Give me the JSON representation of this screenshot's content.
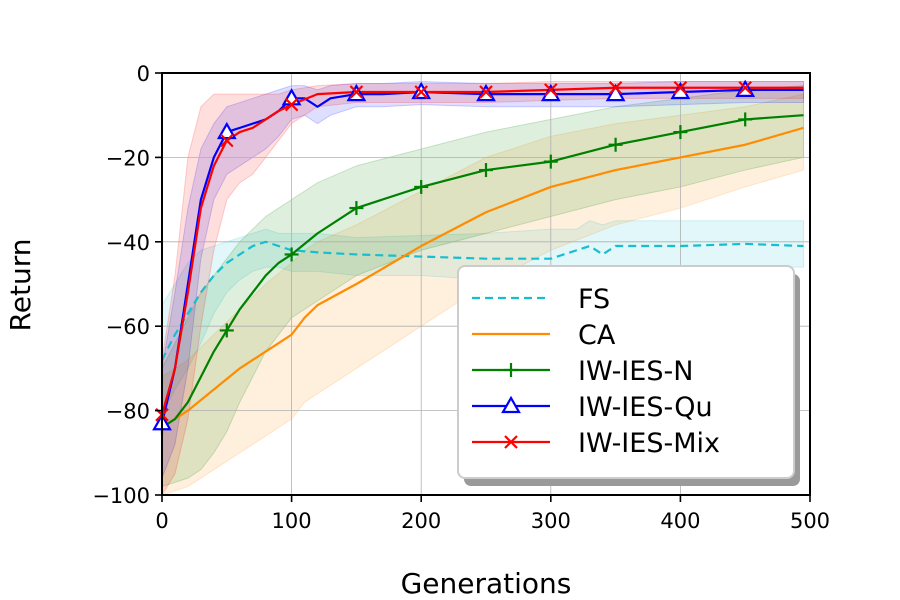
{
  "chart_data": {
    "type": "line",
    "title": "",
    "xlabel": "Generations",
    "ylabel": "Return",
    "xlim": [
      0,
      500
    ],
    "ylim": [
      -100,
      0
    ],
    "xticks": [
      0,
      100,
      200,
      300,
      400,
      500
    ],
    "yticks": [
      0,
      -20,
      -40,
      -60,
      -80,
      -100
    ],
    "xtick_labels": [
      "0",
      "100",
      "200",
      "300",
      "400",
      "500"
    ],
    "ytick_labels": [
      "0",
      "−20",
      "−40",
      "−60",
      "−80",
      "−100"
    ],
    "grid": true,
    "legend_position": "lower-right",
    "series": [
      {
        "name": "FS",
        "color": "#17becf",
        "dash": "dashed",
        "marker": "none",
        "x": [
          0,
          10,
          20,
          30,
          40,
          50,
          60,
          70,
          80,
          90,
          100,
          120,
          150,
          200,
          250,
          300,
          320,
          330,
          340,
          350,
          360,
          400,
          450,
          495
        ],
        "y": [
          -68,
          -62,
          -57,
          -52,
          -48,
          -45,
          -43,
          -41,
          -40,
          -41,
          -42,
          -42.5,
          -43,
          -43.5,
          -44,
          -44,
          -42,
          -41,
          -43,
          -41,
          -41,
          -41,
          -40.5,
          -41
        ],
        "upper": [
          -55,
          -50,
          -45,
          -42,
          -41,
          -40,
          -39,
          -38,
          -37,
          -38,
          -38,
          -38,
          -39,
          -38.5,
          -38,
          -37,
          -37,
          -35,
          -36,
          -35,
          -35,
          -35,
          -35,
          -35
        ],
        "lower": [
          -81,
          -75,
          -70,
          -64,
          -57,
          -52,
          -49,
          -47,
          -46,
          -46,
          -47,
          -47,
          -48,
          -48,
          -49,
          -49,
          -47,
          -47,
          -48,
          -46,
          -46,
          -46,
          -46,
          -46
        ]
      },
      {
        "name": "CA",
        "color": "#ff8c00",
        "dash": "solid",
        "marker": "none",
        "x": [
          0,
          20,
          40,
          60,
          80,
          100,
          110,
          120,
          150,
          200,
          250,
          300,
          350,
          400,
          450,
          495
        ],
        "y": [
          -84,
          -80,
          -75,
          -70,
          -66,
          -62,
          -58,
          -55,
          -50,
          -41,
          -33,
          -27,
          -23,
          -20,
          -17,
          -13
        ],
        "upper": [
          -72,
          -68,
          -62,
          -56,
          -50,
          -45,
          -42,
          -40,
          -36,
          -28,
          -20,
          -15,
          -12,
          -10,
          -8,
          -5
        ],
        "lower": [
          -100,
          -98,
          -94,
          -90,
          -86,
          -82,
          -78,
          -76,
          -70,
          -60,
          -50,
          -42,
          -36,
          -32,
          -27,
          -23
        ]
      },
      {
        "name": "IW-IES-N",
        "color": "#008000",
        "dash": "solid",
        "marker": "plus",
        "x": [
          0,
          10,
          20,
          30,
          40,
          50,
          60,
          70,
          80,
          90,
          100,
          120,
          150,
          200,
          250,
          300,
          350,
          400,
          450,
          495
        ],
        "y": [
          -84,
          -82,
          -78,
          -72,
          -66,
          -61,
          -56,
          -52,
          -48,
          -45,
          -43,
          -38,
          -32,
          -27,
          -23,
          -21,
          -17,
          -14,
          -11,
          -10
        ],
        "upper": [
          -70,
          -64,
          -58,
          -52,
          -48,
          -44,
          -40,
          -37,
          -34,
          -32,
          -30,
          -26,
          -22,
          -18,
          -14,
          -11,
          -8,
          -6,
          -4,
          -3
        ],
        "lower": [
          -98,
          -97,
          -96,
          -94,
          -90,
          -85,
          -78,
          -72,
          -66,
          -62,
          -58,
          -54,
          -48,
          -42,
          -38,
          -34,
          -30,
          -27,
          -23,
          -20
        ]
      },
      {
        "name": "IW-IES-Qu",
        "color": "#0000ff",
        "dash": "solid",
        "marker": "triangle",
        "x": [
          0,
          10,
          20,
          30,
          40,
          50,
          60,
          70,
          80,
          90,
          100,
          110,
          120,
          130,
          150,
          170,
          200,
          250,
          300,
          350,
          400,
          450,
          495
        ],
        "y": [
          -83,
          -70,
          -50,
          -30,
          -20,
          -14,
          -13,
          -12,
          -11,
          -9,
          -6,
          -6,
          -8,
          -6,
          -5,
          -5,
          -4.5,
          -5,
          -5,
          -5,
          -4.5,
          -4,
          -4
        ],
        "upper": [
          -70,
          -52,
          -32,
          -18,
          -12,
          -8,
          -7,
          -6,
          -5,
          -4,
          -3,
          -3,
          -4,
          -3,
          -2.5,
          -2.5,
          -2,
          -2.5,
          -2.5,
          -2.5,
          -2,
          -2,
          -2
        ],
        "lower": [
          -96,
          -88,
          -70,
          -44,
          -30,
          -24,
          -22,
          -20,
          -18,
          -15,
          -11,
          -10,
          -12,
          -10,
          -8,
          -8,
          -7.5,
          -8,
          -8,
          -8,
          -7.5,
          -7,
          -7
        ]
      },
      {
        "name": "IW-IES-Mix",
        "color": "#ff0000",
        "dash": "solid",
        "marker": "x",
        "x": [
          0,
          10,
          20,
          30,
          40,
          50,
          60,
          70,
          80,
          90,
          100,
          120,
          150,
          200,
          250,
          300,
          350,
          400,
          450,
          495
        ],
        "y": [
          -81,
          -70,
          -52,
          -32,
          -22,
          -16,
          -14,
          -13,
          -11,
          -9,
          -7.5,
          -5,
          -4.5,
          -4.5,
          -4.5,
          -4,
          -3.5,
          -3.5,
          -3.5,
          -3.5
        ],
        "upper": [
          -68,
          -48,
          -20,
          -8,
          -5,
          -5,
          -5,
          -5,
          -5,
          -5,
          -4,
          -3,
          -2.5,
          -2.5,
          -2.5,
          -2,
          -2,
          -2,
          -2,
          -2
        ],
        "lower": [
          -100,
          -95,
          -82,
          -60,
          -42,
          -30,
          -26,
          -24,
          -20,
          -16,
          -12,
          -8,
          -7,
          -7,
          -7,
          -6.5,
          -6,
          -6,
          -6,
          -6
        ]
      }
    ],
    "marker_x": [
      0,
      50,
      100,
      150,
      200,
      250,
      300,
      350,
      400,
      450
    ]
  }
}
